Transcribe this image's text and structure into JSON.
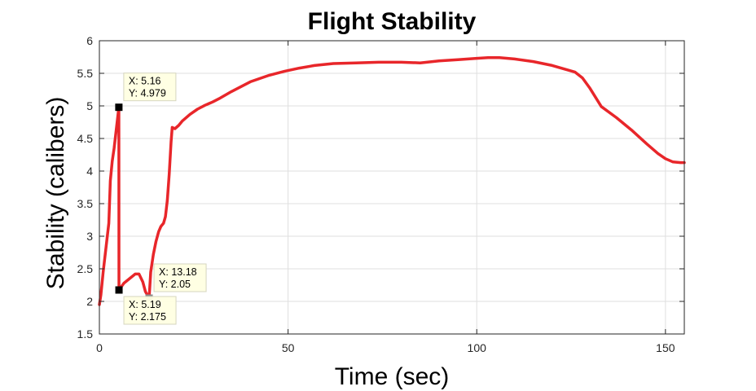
{
  "chart_data": {
    "type": "line",
    "title": "Flight Stability",
    "xlabel": "Time (sec)",
    "ylabel": "Stability (calibers)",
    "xlim": [
      0,
      155
    ],
    "ylim": [
      1.5,
      6
    ],
    "xticks": [
      0,
      50,
      100,
      150
    ],
    "yticks": [
      1.5,
      2,
      2.5,
      3,
      3.5,
      4,
      4.5,
      5,
      5.5,
      6
    ],
    "xtick_labels": [
      "0",
      "50",
      "100",
      "150"
    ],
    "ytick_labels": [
      "1.5",
      "2",
      "2.5",
      "3",
      "3.5",
      "4",
      "4.5",
      "5",
      "5.5",
      "6"
    ],
    "grid": true,
    "line_color": "#e8262a",
    "series": [
      {
        "x": [
          0,
          0.4,
          1.0,
          1.6,
          2.2,
          2.5,
          2.9,
          3.4,
          3.9,
          4.4,
          4.9,
          5.16,
          5.19,
          6.5,
          8.0,
          9.5,
          10.5,
          11.5,
          12.2,
          12.7,
          13.18,
          13.6,
          14.3,
          15.0,
          15.7,
          16.3,
          17.0,
          17.5,
          18.0,
          18.5,
          19.0,
          19.3,
          20.0,
          21.0,
          22.0,
          24.0,
          26.0,
          28.0,
          30.0,
          32.0,
          35.0,
          40.0,
          45.0,
          49.0,
          53.0,
          57.0,
          62.0,
          68.0,
          74.0,
          80.0,
          85.0,
          90.0,
          95.0,
          100.0,
          103.0,
          106.0,
          110.0,
          115.0,
          120.0,
          126.0,
          128.0,
          130.0,
          133.0,
          137.0,
          141.0,
          145.0,
          148.0,
          150.0,
          152.0,
          154.0,
          155.0
        ],
        "y": [
          1.95,
          2.1,
          2.45,
          2.75,
          3.05,
          3.2,
          3.85,
          4.15,
          4.35,
          4.6,
          4.85,
          4.979,
          2.175,
          2.28,
          2.35,
          2.42,
          2.42,
          2.3,
          2.15,
          2.1,
          2.05,
          2.45,
          2.72,
          2.92,
          3.07,
          3.15,
          3.2,
          3.3,
          3.55,
          3.95,
          4.45,
          4.67,
          4.65,
          4.7,
          4.77,
          4.87,
          4.95,
          5.01,
          5.06,
          5.12,
          5.22,
          5.37,
          5.47,
          5.53,
          5.58,
          5.62,
          5.65,
          5.66,
          5.67,
          5.67,
          5.66,
          5.69,
          5.71,
          5.73,
          5.74,
          5.74,
          5.72,
          5.68,
          5.62,
          5.52,
          5.43,
          5.27,
          4.99,
          4.82,
          4.63,
          4.42,
          4.27,
          4.19,
          4.14,
          4.13,
          4.13
        ]
      }
    ],
    "datatips": [
      {
        "x": 5.16,
        "y": 4.979,
        "label_x": "X: 5.16",
        "label_y": "Y: 4.979",
        "placement": "top-right",
        "marker_color": "#000000"
      },
      {
        "x": 5.19,
        "y": 2.175,
        "label_x": "X: 5.19",
        "label_y": "Y: 2.175",
        "placement": "bottom-right",
        "marker_color": "#000000"
      },
      {
        "x": 13.18,
        "y": 2.05,
        "label_x": "X: 13.18",
        "label_y": "Y: 2.05",
        "placement": "top-right",
        "marker_color": "#8c8c8c"
      }
    ]
  }
}
